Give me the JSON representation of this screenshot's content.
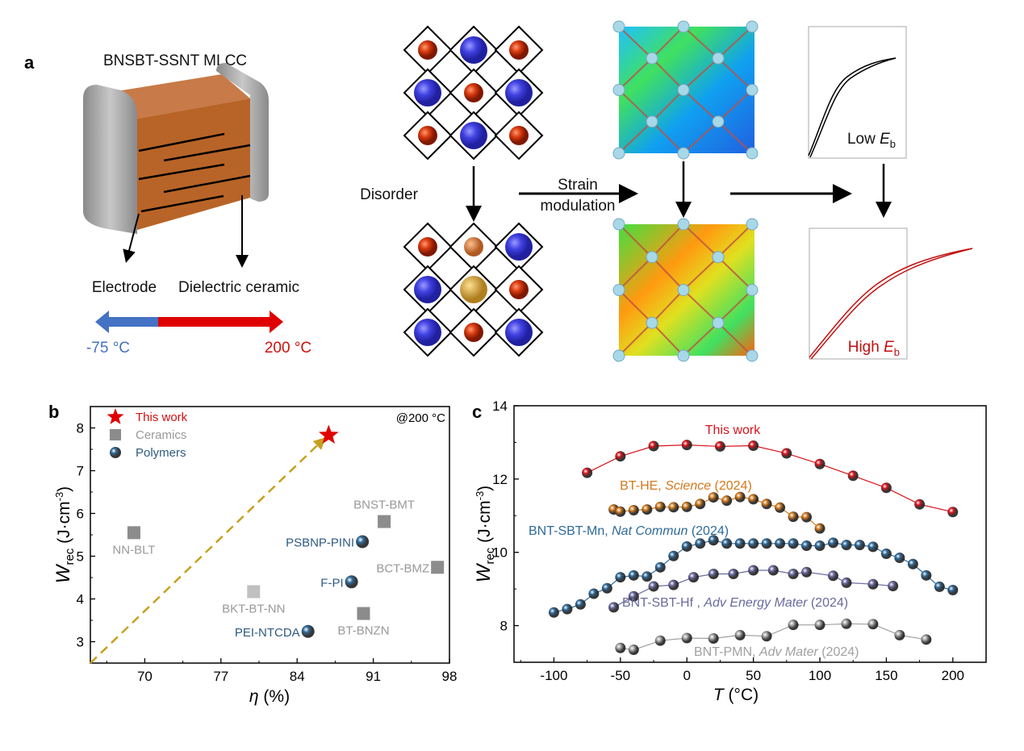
{
  "panel_a": {
    "letter": "a",
    "title": "BNSBT-SSNT MLCC",
    "electrode_label": "Electrode",
    "dielectric_label": "Dielectric ceramic",
    "temp_low": "-75 °C",
    "temp_high": "200 °C",
    "temp_low_color": "#4472c4",
    "temp_high_color": "#e00000",
    "disorder_label": "Disorder",
    "strain_label_1": "Strain",
    "strain_label_2": "modulation",
    "low_eb": {
      "text": "Low ",
      "symbol": "E",
      "sub": "b"
    },
    "high_eb": {
      "text": "High ",
      "symbol": "E",
      "sub": "b"
    }
  },
  "chart_data": [
    {
      "panel": "b",
      "type": "scatter",
      "xlabel": {
        "symbol": "η",
        "unit": " (%)"
      },
      "ylabel": {
        "symbol": "W",
        "sub": "rec",
        "unit": " (J·cm",
        "sup": "-3",
        "close": ")"
      },
      "xlim": [
        65,
        98
      ],
      "ylim": [
        2.5,
        8.5
      ],
      "xticks": [
        70,
        77,
        84,
        91,
        98
      ],
      "yticks": [
        3,
        4,
        5,
        6,
        7,
        8
      ],
      "annotation": "@200 °C",
      "legend_position": "top-left",
      "legend": [
        {
          "name": "This work",
          "marker": "star",
          "color": "#e00000"
        },
        {
          "name": "Ceramics",
          "marker": "square",
          "color": "#8c8c8c"
        },
        {
          "name": "Polymers",
          "marker": "sphere",
          "color": "#2e6a9a"
        }
      ],
      "points": [
        {
          "label": "",
          "group": "This work",
          "x": 86.9,
          "y": 7.83
        },
        {
          "label": "NN-BLT",
          "group": "Ceramics",
          "x": 69.0,
          "y": 5.55
        },
        {
          "label": "BNST-BMT",
          "group": "Ceramics",
          "x": 92.0,
          "y": 5.81
        },
        {
          "label": "BCT-BMZ",
          "group": "Ceramics",
          "x": 96.9,
          "y": 4.74
        },
        {
          "label": "BKT-BT-NN",
          "group": "Ceramics",
          "x": 80.0,
          "y": 4.17
        },
        {
          "label": "BT-BNZN",
          "group": "Ceramics",
          "x": 90.1,
          "y": 3.66
        },
        {
          "label": "PSBNP-PINI",
          "group": "Polymers",
          "x": 90.0,
          "y": 5.34
        },
        {
          "label": "F-PI",
          "group": "Polymers",
          "x": 89.0,
          "y": 4.4
        },
        {
          "label": "PEI-NTCDA",
          "group": "Polymers",
          "x": 85.0,
          "y": 3.24
        }
      ],
      "trend_arrow": {
        "from": [
          65,
          2.5
        ],
        "to": [
          86.5,
          7.75
        ],
        "color": "#c8a020",
        "style": "dashed"
      }
    },
    {
      "panel": "c",
      "type": "line",
      "xlabel": {
        "symbol": "T",
        "unit": " (°C)"
      },
      "ylabel": {
        "symbol": "W",
        "sub": "rec",
        "unit": " (J·cm",
        "sup": "-3",
        "close": ")"
      },
      "xlim": [
        -130,
        225
      ],
      "ylim": [
        7,
        14
      ],
      "xticks": [
        -100,
        -50,
        0,
        50,
        100,
        150,
        200
      ],
      "yticks": [
        8,
        10,
        12,
        14
      ],
      "series": [
        {
          "name": "This work",
          "journal": "",
          "year": "",
          "color": "#d9141c",
          "x": [
            -75,
            -50,
            -25,
            0,
            25,
            50,
            75,
            100,
            125,
            150,
            175,
            200
          ],
          "y": [
            12.17,
            12.62,
            12.9,
            12.93,
            12.89,
            12.91,
            12.7,
            12.41,
            12.09,
            11.76,
            11.31,
            11.1
          ]
        },
        {
          "name": "BT-HE, ",
          "journal": "Science",
          "year": " (2024)",
          "color": "#d27a1e",
          "x": [
            -55,
            -50,
            -40,
            -30,
            -20,
            -10,
            0,
            10,
            20,
            30,
            40,
            50,
            60,
            70,
            80,
            90,
            100
          ],
          "y": [
            11.17,
            11.11,
            11.15,
            11.17,
            11.24,
            11.23,
            11.24,
            11.32,
            11.5,
            11.41,
            11.51,
            11.45,
            11.32,
            11.22,
            10.97,
            10.96,
            10.65
          ]
        },
        {
          "name": "BNT-SBT-Mn, ",
          "journal": "Nat Commun",
          "year": " (2024)",
          "color": "#2e6a9a",
          "x": [
            -100,
            -90,
            -80,
            -70,
            -60,
            -50,
            -40,
            -30,
            -20,
            -10,
            0,
            10,
            20,
            30,
            40,
            50,
            60,
            70,
            80,
            90,
            100,
            110,
            120,
            130,
            140,
            150,
            160,
            170,
            180,
            190,
            200
          ],
          "y": [
            8.36,
            8.45,
            8.58,
            8.87,
            9.02,
            9.32,
            9.37,
            9.34,
            9.59,
            9.9,
            10.16,
            10.24,
            10.33,
            10.24,
            10.24,
            10.24,
            10.24,
            10.24,
            10.24,
            10.18,
            10.18,
            10.26,
            10.2,
            10.2,
            10.15,
            9.96,
            9.85,
            9.68,
            9.37,
            9.06,
            8.97
          ]
        },
        {
          "name": "BNT-SBT-Hf , ",
          "journal": "Adv Energy Mater",
          "year": " (2024)",
          "color": "#6a6aa0",
          "x": [
            -55,
            -40,
            -25,
            -10,
            5,
            20,
            35,
            50,
            65,
            80,
            90,
            110,
            120,
            140,
            155
          ],
          "y": [
            8.5,
            8.8,
            9.07,
            9.11,
            9.32,
            9.41,
            9.41,
            9.51,
            9.51,
            9.41,
            9.46,
            9.36,
            9.17,
            9.13,
            9.08
          ]
        },
        {
          "name": "BNT-PMN, ",
          "journal": "Adv Mater",
          "year": " (2024)",
          "color": "#a0a0a0",
          "x": [
            -50,
            -40,
            -20,
            0,
            20,
            40,
            60,
            80,
            100,
            120,
            140,
            160,
            180
          ],
          "y": [
            7.39,
            7.34,
            7.59,
            7.66,
            7.65,
            7.74,
            7.71,
            8.02,
            8.02,
            8.05,
            8.04,
            7.74,
            7.62
          ]
        }
      ]
    }
  ],
  "panel_b_letter": "b",
  "panel_c_letter": "c"
}
